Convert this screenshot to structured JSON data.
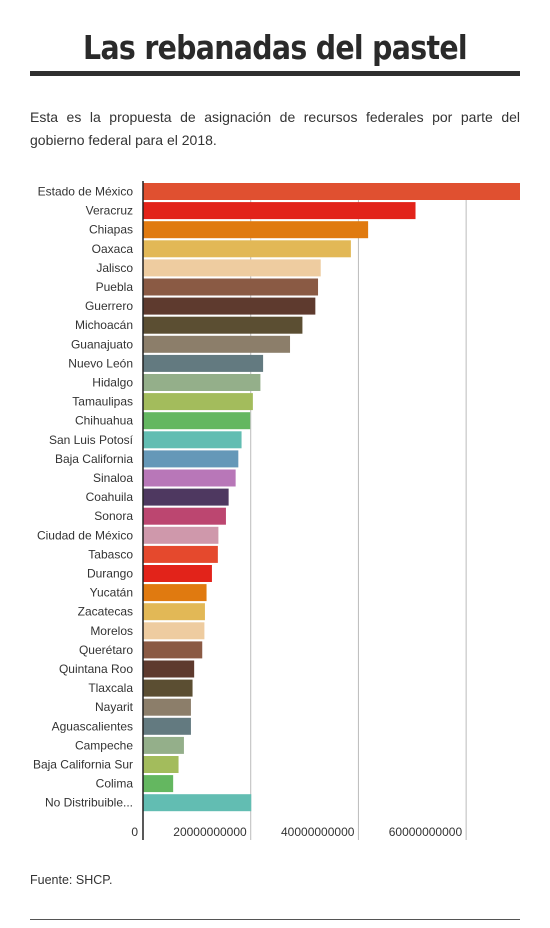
{
  "header": {
    "title": "Las rebanadas del pastel",
    "subtitle": "Esta es la propuesta de asignación de recursos federales por parte del gobierno federal para el 2018."
  },
  "footer": {
    "source": "Fuente: SHCP."
  },
  "chart_data": {
    "type": "bar",
    "orientation": "horizontal",
    "title": "",
    "xlabel": "",
    "ylabel": "",
    "xlim": [
      0,
      70000000000
    ],
    "ticks": [
      0,
      20000000000,
      40000000000,
      60000000000
    ],
    "tick_labels": [
      "0",
      "20000000000",
      "40000000000",
      "60000000000"
    ],
    "grid": true,
    "categories": [
      "Estado de México",
      "Veracruz",
      "Chiapas",
      "Oaxaca",
      "Jalisco",
      "Puebla",
      "Guerrero",
      "Michoacán",
      "Guanajuato",
      "Nuevo León",
      "Hidalgo",
      "Tamaulipas",
      "Chihuahua",
      "San Luis Potosí",
      "Baja California",
      "Sinaloa",
      "Coahuila",
      "Sonora",
      "Ciudad de México",
      "Tabasco",
      "Durango",
      "Yucatán",
      "Zacatecas",
      "Morelos",
      "Querétaro",
      "Quintana Roo",
      "Tlaxcala",
      "Nayarit",
      "Aguascalientes",
      "Campeche",
      "Baja California Sur",
      "Colima",
      "No Distribuible..."
    ],
    "values": [
      70000000000,
      50600000000,
      41800000000,
      38600000000,
      33000000000,
      32500000000,
      32000000000,
      29600000000,
      27300000000,
      22300000000,
      21800000000,
      20400000000,
      19900000000,
      18300000000,
      17700000000,
      17200000000,
      15900000000,
      15400000000,
      14000000000,
      13900000000,
      12800000000,
      11800000000,
      11500000000,
      11400000000,
      11000000000,
      9500000000,
      9200000000,
      8900000000,
      8900000000,
      7600000000,
      6600000000,
      5600000000,
      20100000000
    ],
    "colors": [
      "#e05030",
      "#e2231a",
      "#e07a10",
      "#e2b856",
      "#eecca0",
      "#8a5a44",
      "#5e3a2e",
      "#5b4e32",
      "#8c7e6a",
      "#637a80",
      "#94af8a",
      "#a3bc5c",
      "#64b760",
      "#62bdb2",
      "#6598b8",
      "#b877b8",
      "#4e3860",
      "#bc4670",
      "#cf98ab",
      "#e5492d",
      "#e2231a",
      "#e07a10",
      "#e2b856",
      "#eecca0",
      "#8a5a44",
      "#5e3a2e",
      "#5b4e32",
      "#8c7e6a",
      "#637a80",
      "#94af8a",
      "#a3bc5c",
      "#64b760",
      "#62bdb2"
    ]
  }
}
